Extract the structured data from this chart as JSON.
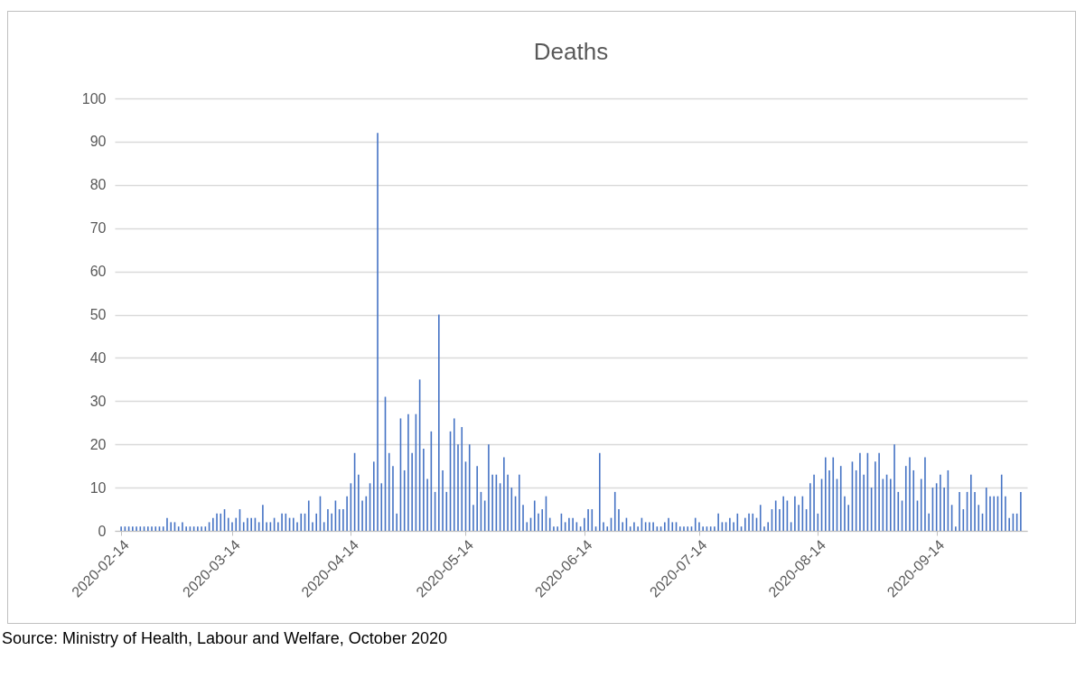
{
  "chart_data": {
    "type": "bar",
    "title": "Deaths",
    "color": "#4472c4",
    "x": [
      "2020-02-14",
      "2020-02-15",
      "2020-02-16",
      "2020-02-17",
      "2020-02-18",
      "2020-02-19",
      "2020-02-20",
      "2020-02-21",
      "2020-02-22",
      "2020-02-23",
      "2020-02-24",
      "2020-02-25",
      "2020-02-26",
      "2020-02-27",
      "2020-02-28",
      "2020-02-29",
      "2020-03-01",
      "2020-03-02",
      "2020-03-03",
      "2020-03-04",
      "2020-03-05",
      "2020-03-06",
      "2020-03-07",
      "2020-03-08",
      "2020-03-09",
      "2020-03-10",
      "2020-03-11",
      "2020-03-12",
      "2020-03-13",
      "2020-03-14",
      "2020-03-15",
      "2020-03-16",
      "2020-03-17",
      "2020-03-18",
      "2020-03-19",
      "2020-03-20",
      "2020-03-21",
      "2020-03-22",
      "2020-03-23",
      "2020-03-24",
      "2020-03-25",
      "2020-03-26",
      "2020-03-27",
      "2020-03-28",
      "2020-03-29",
      "2020-03-30",
      "2020-03-31",
      "2020-04-01",
      "2020-04-02",
      "2020-04-03",
      "2020-04-04",
      "2020-04-05",
      "2020-04-06",
      "2020-04-07",
      "2020-04-08",
      "2020-04-09",
      "2020-04-10",
      "2020-04-11",
      "2020-04-12",
      "2020-04-13",
      "2020-04-14",
      "2020-04-15",
      "2020-04-16",
      "2020-04-17",
      "2020-04-18",
      "2020-04-19",
      "2020-04-20",
      "2020-04-21",
      "2020-04-22",
      "2020-04-23",
      "2020-04-24",
      "2020-04-25",
      "2020-04-26",
      "2020-04-27",
      "2020-04-28",
      "2020-04-29",
      "2020-04-30",
      "2020-05-01",
      "2020-05-02",
      "2020-05-03",
      "2020-05-04",
      "2020-05-05",
      "2020-05-06",
      "2020-05-07",
      "2020-05-08",
      "2020-05-09",
      "2020-05-10",
      "2020-05-11",
      "2020-05-12",
      "2020-05-13",
      "2020-05-14",
      "2020-05-15",
      "2020-05-16",
      "2020-05-17",
      "2020-05-18",
      "2020-05-19",
      "2020-05-20",
      "2020-05-21",
      "2020-05-22",
      "2020-05-23",
      "2020-05-24",
      "2020-05-25",
      "2020-05-26",
      "2020-05-27",
      "2020-05-28",
      "2020-05-29",
      "2020-05-30",
      "2020-05-31",
      "2020-06-01",
      "2020-06-02",
      "2020-06-03",
      "2020-06-04",
      "2020-06-05",
      "2020-06-06",
      "2020-06-07",
      "2020-06-08",
      "2020-06-09",
      "2020-06-10",
      "2020-06-11",
      "2020-06-12",
      "2020-06-13",
      "2020-06-14",
      "2020-06-15",
      "2020-06-16",
      "2020-06-17",
      "2020-06-18",
      "2020-06-19",
      "2020-06-20",
      "2020-06-21",
      "2020-06-22",
      "2020-06-23",
      "2020-06-24",
      "2020-06-25",
      "2020-06-26",
      "2020-06-27",
      "2020-06-28",
      "2020-06-29",
      "2020-06-30",
      "2020-07-01",
      "2020-07-02",
      "2020-07-03",
      "2020-07-04",
      "2020-07-05",
      "2020-07-06",
      "2020-07-07",
      "2020-07-08",
      "2020-07-09",
      "2020-07-10",
      "2020-07-11",
      "2020-07-12",
      "2020-07-13",
      "2020-07-14",
      "2020-07-15",
      "2020-07-16",
      "2020-07-17",
      "2020-07-18",
      "2020-07-19",
      "2020-07-20",
      "2020-07-21",
      "2020-07-22",
      "2020-07-23",
      "2020-07-24",
      "2020-07-25",
      "2020-07-26",
      "2020-07-27",
      "2020-07-28",
      "2020-07-29",
      "2020-07-30",
      "2020-07-31",
      "2020-08-01",
      "2020-08-02",
      "2020-08-03",
      "2020-08-04",
      "2020-08-05",
      "2020-08-06",
      "2020-08-07",
      "2020-08-08",
      "2020-08-09",
      "2020-08-10",
      "2020-08-11",
      "2020-08-12",
      "2020-08-13",
      "2020-08-14",
      "2020-08-15",
      "2020-08-16",
      "2020-08-17",
      "2020-08-18",
      "2020-08-19",
      "2020-08-20",
      "2020-08-21",
      "2020-08-22",
      "2020-08-23",
      "2020-08-24",
      "2020-08-25",
      "2020-08-26",
      "2020-08-27",
      "2020-08-28",
      "2020-08-29",
      "2020-08-30",
      "2020-08-31",
      "2020-09-01",
      "2020-09-02",
      "2020-09-03",
      "2020-09-04",
      "2020-09-05",
      "2020-09-06",
      "2020-09-07",
      "2020-09-08",
      "2020-09-09",
      "2020-09-10",
      "2020-09-11",
      "2020-09-12",
      "2020-09-13",
      "2020-09-14",
      "2020-09-15",
      "2020-09-16",
      "2020-09-17",
      "2020-09-18",
      "2020-09-19",
      "2020-09-20",
      "2020-09-21",
      "2020-09-22",
      "2020-09-23",
      "2020-09-24",
      "2020-09-25",
      "2020-09-26",
      "2020-09-27",
      "2020-09-28",
      "2020-09-29",
      "2020-09-30",
      "2020-10-01",
      "2020-10-02",
      "2020-10-03",
      "2020-10-04",
      "2020-10-05",
      "2020-10-06"
    ],
    "values": [
      1,
      1,
      1,
      1,
      1,
      1,
      1,
      1,
      1,
      1,
      1,
      1,
      3,
      2,
      2,
      1,
      2,
      1,
      1,
      1,
      1,
      1,
      1,
      2,
      3,
      4,
      4,
      5,
      3,
      2,
      3,
      5,
      2,
      3,
      3,
      3,
      2,
      6,
      2,
      2,
      3,
      2,
      4,
      4,
      3,
      3,
      2,
      4,
      4,
      7,
      2,
      4,
      8,
      2,
      5,
      4,
      7,
      5,
      5,
      8,
      11,
      18,
      13,
      7,
      8,
      11,
      16,
      92,
      11,
      31,
      18,
      15,
      4,
      26,
      14,
      27,
      18,
      27,
      35,
      19,
      12,
      23,
      9,
      50,
      14,
      9,
      23,
      26,
      20,
      24,
      16,
      20,
      6,
      15,
      9,
      7,
      20,
      13,
      13,
      11,
      17,
      13,
      10,
      8,
      13,
      6,
      2,
      3,
      7,
      4,
      5,
      8,
      3,
      1,
      1,
      4,
      2,
      3,
      3,
      2,
      1,
      3,
      5,
      5,
      1,
      18,
      2,
      1,
      3,
      9,
      5,
      2,
      3,
      1,
      2,
      1,
      3,
      2,
      2,
      2,
      1,
      1,
      2,
      3,
      2,
      2,
      1,
      1,
      1,
      1,
      3,
      2,
      1,
      1,
      1,
      1,
      4,
      2,
      2,
      3,
      2,
      4,
      1,
      3,
      4,
      4,
      3,
      6,
      1,
      2,
      5,
      7,
      5,
      8,
      7,
      2,
      8,
      6,
      8,
      5,
      11,
      13,
      4,
      12,
      17,
      14,
      17,
      12,
      15,
      8,
      6,
      16,
      14,
      18,
      13,
      18,
      10,
      16,
      18,
      12,
      13,
      12,
      20,
      9,
      7,
      15,
      17,
      14,
      7,
      12,
      17,
      4,
      10,
      11,
      13,
      10,
      14,
      6,
      1,
      9,
      5,
      9,
      13,
      9,
      6,
      4,
      10,
      8,
      8,
      8,
      13,
      8,
      3,
      4,
      4,
      9
    ],
    "xlim": [
      "2020-02-13T12:00",
      "2020-10-06T12:00"
    ],
    "xticks": [
      "2020-02-14",
      "2020-03-14",
      "2020-04-14",
      "2020-05-14",
      "2020-06-14",
      "2020-07-14",
      "2020-08-14",
      "2020-09-14"
    ],
    "ylim": [
      0,
      100
    ],
    "yticks": [
      0,
      10,
      20,
      30,
      40,
      50,
      60,
      70,
      80,
      90,
      100
    ],
    "grid": "y",
    "annotations": [
      "Source: Ministry of Health, Labour and Welfare, October 2020"
    ]
  }
}
